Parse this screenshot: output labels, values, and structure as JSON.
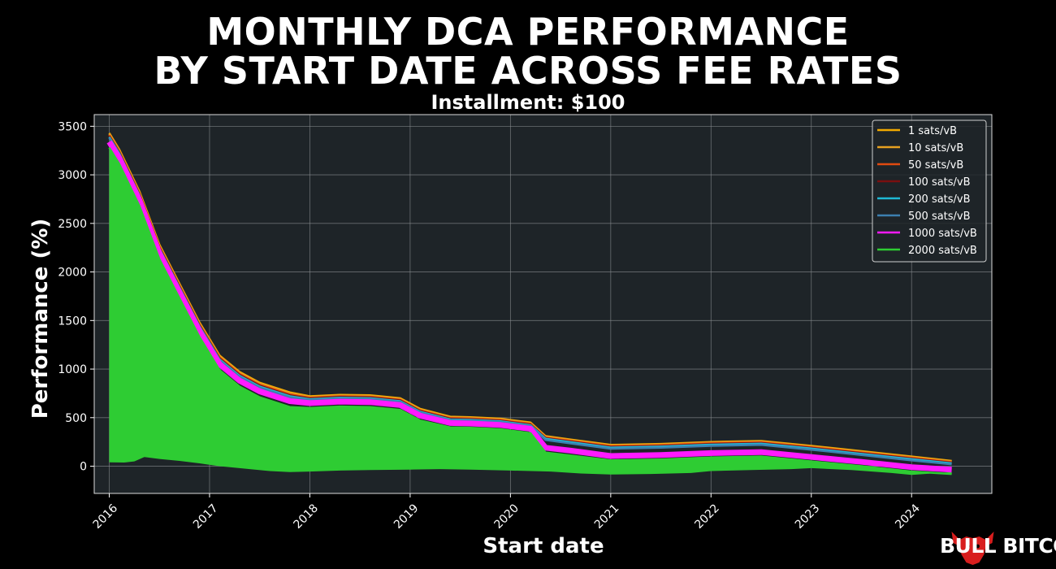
{
  "chart_data": {
    "type": "area",
    "title": "MONTHLY DCA PERFORMANCE\nBY START DATE ACROSS FEE RATES",
    "title_line1": "MONTHLY DCA PERFORMANCE",
    "title_line2": "BY START DATE ACROSS FEE RATES",
    "subtitle": "Installment: $100",
    "xlabel": "Start date",
    "ylabel": "Performance (%)",
    "xlim": [
      2015.85,
      2024.8
    ],
    "ylim": [
      -280,
      3620
    ],
    "x_ticks": [
      2016,
      2017,
      2018,
      2019,
      2020,
      2021,
      2022,
      2023,
      2024
    ],
    "x_tick_labels": [
      "2016",
      "2017",
      "2018",
      "2019",
      "2020",
      "2021",
      "2022",
      "2023",
      "2024"
    ],
    "y_ticks": [
      0,
      500,
      1000,
      1500,
      2000,
      2500,
      3000,
      3500
    ],
    "y_tick_labels": [
      "0",
      "500",
      "1000",
      "1500",
      "2000",
      "2500",
      "3000",
      "3500"
    ],
    "grid": true,
    "legend_position": "top-right",
    "background": "#1e2428",
    "x": [
      2016.0,
      2016.1,
      2016.3,
      2016.5,
      2016.7,
      2016.9,
      2017.1,
      2017.3,
      2017.5,
      2017.8,
      2018.0,
      2018.3,
      2018.6,
      2018.9,
      2019.1,
      2019.4,
      2019.6,
      2019.9,
      2020.2,
      2020.35,
      2020.6,
      2021.0,
      2021.5,
      2022.0,
      2022.5,
      2023.0,
      2023.5,
      2024.0,
      2024.4
    ],
    "series": [
      {
        "name": "1 sats/vB",
        "color": "#f2a900",
        "values": [
          3430,
          3260,
          2830,
          2280,
          1880,
          1480,
          1140,
          970,
          860,
          760,
          720,
          735,
          730,
          700,
          590,
          510,
          505,
          490,
          450,
          310,
          275,
          220,
          230,
          250,
          260,
          210,
          155,
          100,
          55
        ]
      },
      {
        "name": "10 sats/vB",
        "color": "#e6a020",
        "values": [
          3420,
          3250,
          2820,
          2270,
          1870,
          1470,
          1130,
          960,
          850,
          750,
          712,
          727,
          722,
          692,
          582,
          503,
          498,
          483,
          443,
          303,
          268,
          213,
          223,
          243,
          253,
          203,
          148,
          93,
          48
        ]
      },
      {
        "name": "50 sats/vB",
        "color": "#e04a10",
        "values": [
          3410,
          3240,
          2810,
          2260,
          1860,
          1460,
          1120,
          950,
          840,
          740,
          705,
          720,
          715,
          685,
          575,
          496,
          491,
          476,
          436,
          296,
          261,
          206,
          216,
          236,
          246,
          196,
          141,
          86,
          42
        ]
      },
      {
        "name": "100 sats/vB",
        "color": "#7a0f0f",
        "values": [
          3400,
          3230,
          2800,
          2250,
          1850,
          1450,
          1110,
          940,
          830,
          730,
          698,
          713,
          708,
          678,
          568,
          489,
          484,
          469,
          429,
          289,
          254,
          199,
          209,
          229,
          239,
          189,
          134,
          79,
          36
        ]
      },
      {
        "name": "200 sats/vB",
        "color": "#1fb8d4",
        "values": [
          3390,
          3220,
          2790,
          2240,
          1840,
          1440,
          1100,
          930,
          820,
          720,
          690,
          705,
          700,
          670,
          560,
          482,
          477,
          462,
          422,
          282,
          247,
          192,
          202,
          222,
          232,
          182,
          127,
          72,
          30
        ]
      },
      {
        "name": "500 sats/vB",
        "color": "#3c7fb0",
        "values": [
          3380,
          3210,
          2780,
          2230,
          1830,
          1430,
          1090,
          920,
          810,
          710,
          682,
          697,
          692,
          662,
          552,
          475,
          470,
          455,
          415,
          270,
          235,
          180,
          190,
          210,
          220,
          170,
          115,
          60,
          20
        ]
      },
      {
        "name": "1000 sats/vB",
        "color": "#ff1aff",
        "values": [
          3340,
          3170,
          2740,
          2190,
          1790,
          1390,
          1050,
          880,
          770,
          670,
          650,
          665,
          660,
          630,
          520,
          445,
          440,
          425,
          385,
          190,
          160,
          105,
          115,
          135,
          145,
          95,
          45,
          -10,
          -35
        ]
      },
      {
        "name": "2000 sats/vB",
        "color": "#2ecc33",
        "values": [
          3280,
          3110,
          2680,
          2130,
          1730,
          1330,
          990,
          820,
          710,
          610,
          600,
          615,
          610,
          580,
          470,
          400,
          395,
          380,
          340,
          140,
          110,
          60,
          70,
          90,
          100,
          50,
          0,
          -55,
          -80
        ]
      }
    ],
    "lower_band": {
      "x": [
        2016.0,
        2016.15,
        2016.25,
        2016.35,
        2016.5,
        2016.7,
        2016.9,
        2017.1,
        2017.4,
        2017.6,
        2017.8,
        2018.0,
        2018.3,
        2018.6,
        2019.0,
        2019.3,
        2019.6,
        2020.0,
        2020.4,
        2020.7,
        2021.0,
        2021.4,
        2021.8,
        2022.0,
        2022.4,
        2022.8,
        2023.0,
        2023.4,
        2023.8,
        2024.0,
        2024.4
      ],
      "values": [
        40,
        38,
        50,
        95,
        75,
        55,
        30,
        0,
        -30,
        -50,
        -60,
        -55,
        -45,
        -40,
        -35,
        -30,
        -35,
        -45,
        -55,
        -75,
        -85,
        -80,
        -70,
        -50,
        -40,
        -30,
        -20,
        -40,
        -70,
        -90,
        -60
      ]
    }
  },
  "brand": {
    "name": "BULL BITCOIN",
    "logo_icon": "bull-head-icon",
    "logo_color": "#d81e1e"
  }
}
